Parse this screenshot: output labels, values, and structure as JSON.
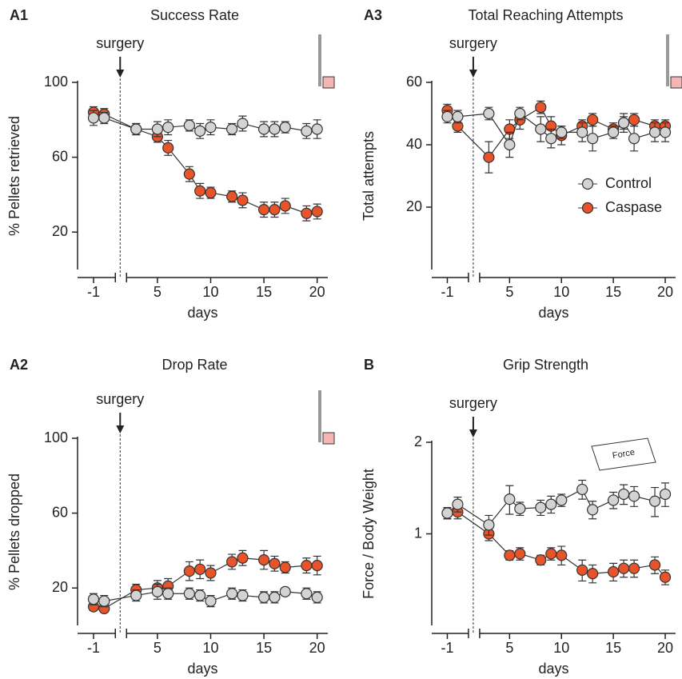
{
  "chart_data": [
    {
      "type": "line",
      "label": "A1",
      "title": "Success Rate",
      "annotation": "surgery",
      "xlabel": "days",
      "ylabel": "% Pellets retrieved",
      "x": [
        -1,
        0,
        3,
        5,
        6,
        8,
        9,
        10,
        12,
        13,
        15,
        16,
        17,
        19,
        20
      ],
      "xlim": [
        -2.5,
        21
      ],
      "xticks": [
        -1,
        5,
        10,
        15,
        20
      ],
      "ylim": [
        0,
        100
      ],
      "yticks": [
        20,
        60,
        100
      ],
      "series": [
        {
          "name": "Control",
          "color": "#d3d3d3",
          "values": [
            81,
            81,
            75,
            75,
            76,
            77,
            74,
            76,
            75,
            78,
            75,
            75,
            76,
            74,
            75
          ],
          "errors": [
            4,
            3,
            3,
            4,
            4,
            3,
            4,
            4,
            3,
            4,
            4,
            4,
            3,
            4,
            5
          ]
        },
        {
          "name": "Caspase",
          "color": "#e8542a",
          "values": [
            84,
            83,
            75,
            71,
            65,
            51,
            42,
            41,
            39,
            37,
            32,
            32,
            34,
            30,
            31
          ],
          "errors": [
            3,
            3,
            3,
            3,
            4,
            4,
            4,
            3,
            3,
            4,
            4,
            4,
            4,
            4,
            4
          ]
        }
      ]
    },
    {
      "type": "line",
      "label": "A3",
      "title": "Total Reaching Attempts",
      "annotation": "surgery",
      "xlabel": "days",
      "ylabel": "Total attempts",
      "x": [
        -1,
        0,
        3,
        5,
        6,
        8,
        9,
        10,
        12,
        13,
        15,
        16,
        17,
        19,
        20
      ],
      "xlim": [
        -2.5,
        21
      ],
      "xticks": [
        -1,
        5,
        10,
        15,
        20
      ],
      "ylim": [
        0,
        60
      ],
      "yticks": [
        20,
        40,
        60
      ],
      "legend": "center right",
      "series": [
        {
          "name": "Control",
          "color": "#d3d3d3",
          "values": [
            49,
            49,
            50,
            40,
            50,
            45,
            42,
            44,
            44,
            42,
            44,
            47,
            42,
            44,
            44
          ],
          "errors": [
            2,
            2,
            2,
            4,
            2,
            4,
            3,
            2,
            3,
            4,
            2,
            3,
            4,
            3,
            3
          ]
        },
        {
          "name": "Caspase",
          "color": "#e8542a",
          "values": [
            51,
            46,
            36,
            45,
            48,
            52,
            46,
            43,
            46,
            48,
            45,
            47,
            48,
            46,
            46
          ],
          "errors": [
            2,
            2,
            5,
            3,
            3,
            2,
            3,
            3,
            2,
            2,
            2,
            2,
            2,
            2,
            2
          ]
        }
      ]
    },
    {
      "type": "line",
      "label": "A2",
      "title": "Drop Rate",
      "annotation": "surgery",
      "xlabel": "days",
      "ylabel": "% Pellets  dropped",
      "x": [
        -1,
        0,
        3,
        5,
        6,
        8,
        9,
        10,
        12,
        13,
        15,
        16,
        17,
        19,
        20
      ],
      "xlim": [
        -2.5,
        21
      ],
      "xticks": [
        -1,
        5,
        10,
        15,
        20
      ],
      "ylim": [
        0,
        100
      ],
      "yticks": [
        20,
        60,
        100
      ],
      "series": [
        {
          "name": "Control",
          "color": "#d3d3d3",
          "values": [
            14,
            13,
            16,
            18,
            17,
            17,
            16,
            13,
            17,
            16,
            15,
            15,
            18,
            17,
            15
          ],
          "errors": [
            3,
            3,
            3,
            4,
            3,
            3,
            3,
            3,
            3,
            3,
            3,
            3,
            2,
            3,
            3
          ]
        },
        {
          "name": "Caspase",
          "color": "#e8542a",
          "values": [
            10,
            9,
            19,
            20,
            21,
            29,
            30,
            28,
            34,
            36,
            35,
            33,
            31,
            32,
            32
          ],
          "errors": [
            2,
            2,
            3,
            4,
            4,
            5,
            5,
            4,
            4,
            4,
            5,
            4,
            3,
            4,
            5
          ]
        }
      ]
    },
    {
      "type": "line",
      "label": "B",
      "title": "Grip Strength",
      "annotation": "surgery",
      "xlabel": "days",
      "ylabel": "Force / Body Weight",
      "inset_label": "Force",
      "x": [
        -1,
        0,
        3,
        5,
        6,
        8,
        9,
        10,
        12,
        13,
        15,
        16,
        17,
        19,
        20
      ],
      "xlim": [
        -2.5,
        21
      ],
      "xticks": [
        -1,
        5,
        10,
        15,
        20
      ],
      "ylim": [
        0.5,
        2
      ],
      "yticks": [
        1,
        2
      ],
      "yscale": "log",
      "series": [
        {
          "name": "Control",
          "color": "#d3d3d3",
          "values": [
            1.17,
            1.25,
            1.07,
            1.3,
            1.21,
            1.22,
            1.25,
            1.29,
            1.4,
            1.2,
            1.29,
            1.35,
            1.33,
            1.28,
            1.35
          ],
          "errors": [
            0.05,
            0.07,
            0.08,
            0.14,
            0.06,
            0.07,
            0.08,
            0.06,
            0.1,
            0.08,
            0.08,
            0.1,
            0.1,
            0.14,
            0.12
          ]
        },
        {
          "name": "Caspase",
          "color": "#e8542a",
          "values": [
            1.17,
            1.18,
            1.0,
            0.85,
            0.86,
            0.82,
            0.86,
            0.85,
            0.76,
            0.74,
            0.75,
            0.77,
            0.77,
            0.79,
            0.72
          ],
          "errors": [
            0.05,
            0.06,
            0.05,
            0.03,
            0.04,
            0.03,
            0.04,
            0.06,
            0.06,
            0.05,
            0.05,
            0.05,
            0.05,
            0.05,
            0.04
          ]
        }
      ]
    }
  ]
}
